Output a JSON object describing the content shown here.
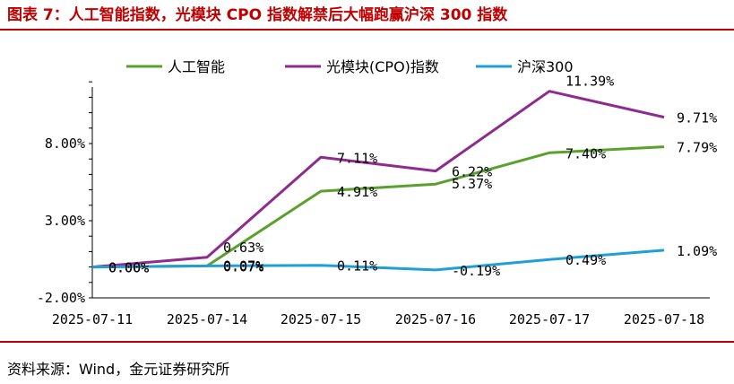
{
  "title": "图表 7：人工智能指数，光模块 CPO 指数解禁后大幅跑赢沪深 300 指数",
  "source": "资料来源：Wind，金元证券研究所",
  "chart_data": {
    "type": "line",
    "categories": [
      "2025-07-11",
      "2025-07-14",
      "2025-07-15",
      "2025-07-16",
      "2025-07-17",
      "2025-07-18"
    ],
    "y_tick_labels": [
      "8.00%",
      "3.00%",
      "-2.00%"
    ],
    "y_ticks": [
      8,
      3,
      -2
    ],
    "ylim": [
      -2,
      12
    ],
    "legend_position": "top",
    "series": [
      {
        "name": "人工智能",
        "color": "#5aa02c",
        "values": [
          0.0,
          0.07,
          4.91,
          5.37,
          7.4,
          7.79
        ],
        "labels": [
          "0.00%",
          "0.07%",
          "4.91%",
          "5.37%",
          "7.40%",
          "7.79%"
        ]
      },
      {
        "name": "光模块(CPO)指数",
        "color": "#8e2b8e",
        "values": [
          0.0,
          0.63,
          7.11,
          6.22,
          11.39,
          9.71
        ],
        "labels": [
          "0.00%",
          "0.63%",
          "7.11%",
          "6.22%",
          "11.39%",
          "9.71%"
        ]
      },
      {
        "name": "沪深300",
        "color": "#1f9fd6",
        "values": [
          0.0,
          0.07,
          0.11,
          -0.19,
          0.49,
          1.09
        ],
        "labels": [
          "0.00%",
          "0.07%",
          "0.11%",
          "-0.19%",
          "0.49%",
          "1.09%"
        ]
      }
    ]
  }
}
